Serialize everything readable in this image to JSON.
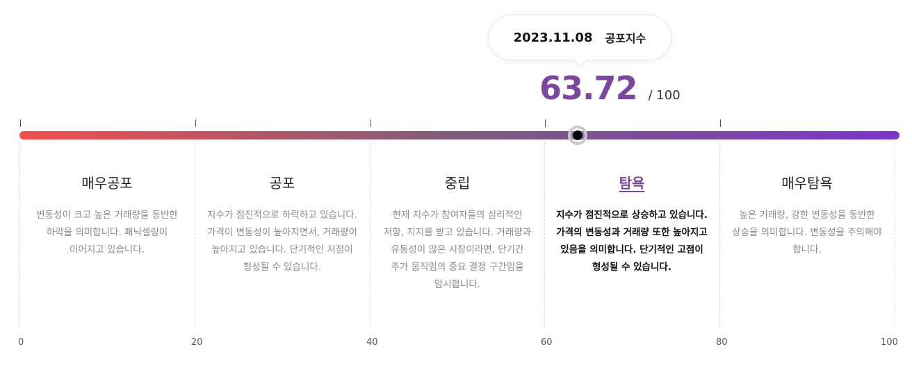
{
  "tooltip": {
    "date": "2023.11.08",
    "label": "공포지수"
  },
  "score": {
    "value": 63.72,
    "value_text": "63.72",
    "max_text": "/ 100"
  },
  "scale": {
    "min": 0,
    "max": 100,
    "labels": [
      "0",
      "20",
      "40",
      "60",
      "80",
      "100"
    ]
  },
  "colors": {
    "start": "#f14f4f",
    "middle": "#7d5c7b",
    "end": "#7b35c8",
    "accent": "#7b479c",
    "knob_ring": "#c9c9c9"
  },
  "active_zone": 3,
  "zones": [
    {
      "title": "매우공포",
      "description": "변동성이 크고 높은 거래량을 동반한 하락을 의미합니다. 패닉셀링이 이어지고 있습니다."
    },
    {
      "title": "공포",
      "description": "지수가 점진적으로 하락하고 있습니다. 가격이 변동성이 높아지면서, 거래량이 높아지고 있습니다. 단기적인 저점이 형성될 수 있습니다."
    },
    {
      "title": "중립",
      "description": "현재 지수가 참여자들의 심리적인 저항, 지지를 받고 있습니다. 거래량과 유동성이 많은 시장이라면, 단기간 주가 움직임의 중요 결정 구간임을 암시합니다."
    },
    {
      "title": "탐욕",
      "description": "지수가 점진적으로 상승하고 있습니다. 가격의 변동성과 거래량 또한 높아지고 있음을 의미합니다. 단기적인 고점이 형성될 수 있습니다."
    },
    {
      "title": "매우탐욕",
      "description": "높은 거래량, 강한 변동성을 동반한 상승을 의미합니다. 변동성을 주의해야 합니다."
    }
  ]
}
